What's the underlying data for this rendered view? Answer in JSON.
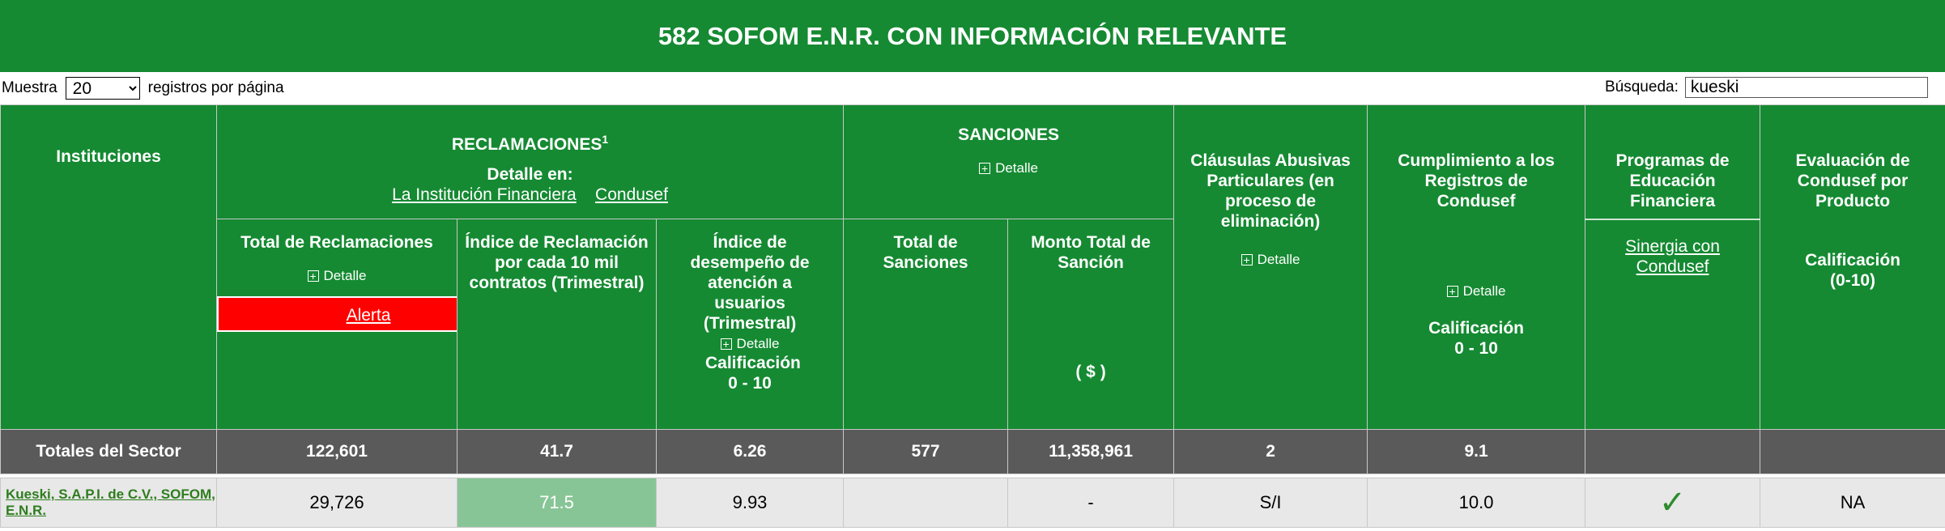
{
  "title": "582 SOFOM E.N.R. CON INFORMACIÓN RELEVANTE",
  "controls": {
    "show_label": "Muestra",
    "page_size": "20",
    "per_page_label": "registros por página",
    "search_label": "Búsqueda:",
    "search_value": "kueski"
  },
  "headers": {
    "instituciones": "Instituciones",
    "reclamaciones": "RECLAMACIONES",
    "reclamaciones_sup": "1",
    "detalle_en": "Detalle en:",
    "link_institucion": "La Institución Financiera",
    "link_condusef": "Condusef",
    "sanciones": "SANCIONES",
    "detalle": "Detalle",
    "clausulas": "Cláusulas Abusivas Particulares (en proceso de eliminación)",
    "cumplimiento": "Cumplimiento a los Registros de Condusef",
    "programas": "Programas de Educación Financiera",
    "evaluacion": "Evaluación de Condusef por Producto",
    "total_reclamaciones": "Total de Reclamaciones",
    "alerta": "Alerta",
    "indice_reclamacion": "Índice de Reclamación por cada 10 mil contratos (Trimestral)",
    "indice_desempeno": "Índice de desempeño de atención a usuarios (Trimestral)",
    "calificacion_0_10": "Calificación 0 - 10",
    "total_sanciones": "Total de Sanciones",
    "monto_total": "Monto Total de Sanción",
    "moneda": "( $ )",
    "sinergia": "Sinergia con Condusef",
    "calificacion_paren": "Calificación (0-10)"
  },
  "totals": {
    "label": "Totales del Sector",
    "total_reclamaciones": "122,601",
    "indice_reclamacion": "41.7",
    "indice_desempeno": "6.26",
    "total_sanciones": "577",
    "monto_total": "11,358,961",
    "clausulas": "2",
    "cumplimiento": "9.1"
  },
  "row": {
    "institucion": "Kueski, S.A.P.I. de C.V., SOFOM, E.N.R.",
    "total_reclamaciones": "29,726",
    "indice_reclamacion": "71.5",
    "indice_desempeno": "9.93",
    "total_sanciones": "",
    "monto_total": "-",
    "clausulas": "S/I",
    "cumplimiento": "10.0",
    "programas_icon": "check-icon",
    "evaluacion": "NA"
  }
}
